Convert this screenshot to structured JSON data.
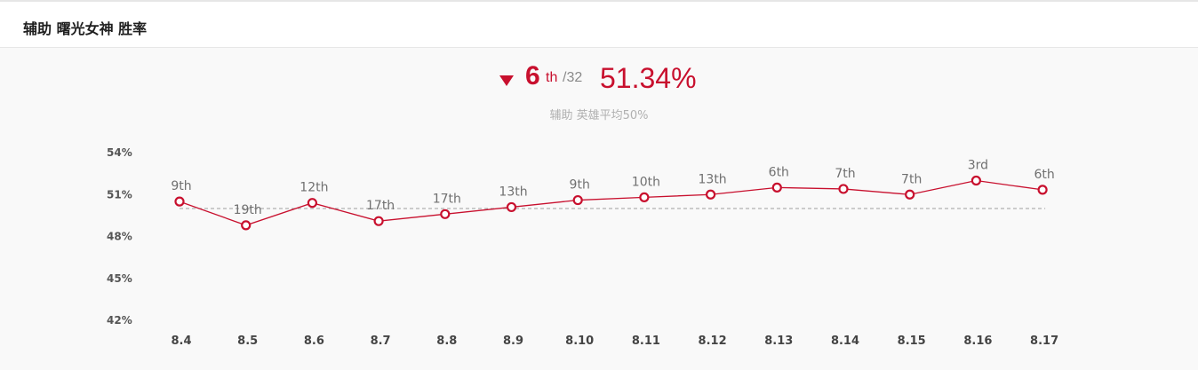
{
  "header": {
    "title": "辅助 曙光女神 胜率"
  },
  "summary": {
    "trend": "down",
    "rank": "6",
    "rank_suffix": "th",
    "rank_total": "/32",
    "win_rate": "51.34%",
    "subtitle": "辅助 英雄平均50%"
  },
  "colors": {
    "accent": "#c8102e",
    "average_line": "#a0a0a0"
  },
  "chart_data": {
    "type": "line",
    "title": "",
    "xlabel": "",
    "ylabel": "",
    "categories": [
      "8.4",
      "8.5",
      "8.6",
      "8.7",
      "8.8",
      "8.9",
      "8.10",
      "8.11",
      "8.12",
      "8.13",
      "8.14",
      "8.15",
      "8.16",
      "8.17"
    ],
    "y_ticks": [
      "54%",
      "51%",
      "48%",
      "45%",
      "42%"
    ],
    "ylim": [
      42,
      54
    ],
    "reference_line": 50,
    "series": [
      {
        "values": [
          50.5,
          48.8,
          50.4,
          49.1,
          49.6,
          50.1,
          50.6,
          50.8,
          51.0,
          51.5,
          51.4,
          51.0,
          52.0,
          51.34
        ],
        "point_labels": [
          "9th",
          "19th",
          "12th",
          "17th",
          "17th",
          "13th",
          "9th",
          "10th",
          "13th",
          "6th",
          "7th",
          "7th",
          "3rd",
          "6th"
        ]
      }
    ]
  }
}
